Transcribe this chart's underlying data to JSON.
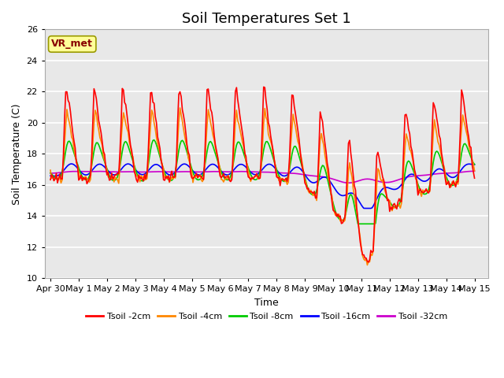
{
  "title": "Soil Temperatures Set 1",
  "xlabel": "Time",
  "ylabel": "Soil Temperature (C)",
  "ylim": [
    10,
    26
  ],
  "yticks": [
    10,
    12,
    14,
    16,
    18,
    20,
    22,
    24,
    26
  ],
  "xlabels": [
    "Apr 30",
    "May 1",
    "May 2",
    "May 3",
    "May 4",
    "May 5",
    "May 6",
    "May 7",
    "May 8",
    "May 9",
    "May 10",
    "May 11",
    "May 12",
    "May 13",
    "May 14",
    "May 15"
  ],
  "legend_labels": [
    "Tsoil -2cm",
    "Tsoil -4cm",
    "Tsoil -8cm",
    "Tsoil -16cm",
    "Tsoil -32cm"
  ],
  "line_colors": [
    "#ff0000",
    "#ff8800",
    "#00cc00",
    "#0000ff",
    "#cc00cc"
  ],
  "bg_color": "#e8e8e8",
  "annotation_text": "VR_met",
  "annotation_color": "#880000",
  "annotation_bg": "#ffff99",
  "annotation_border": "#999900",
  "title_fontsize": 13,
  "label_fontsize": 9,
  "tick_fontsize": 8,
  "grid_color": "#ffffff",
  "lw": 1.2
}
